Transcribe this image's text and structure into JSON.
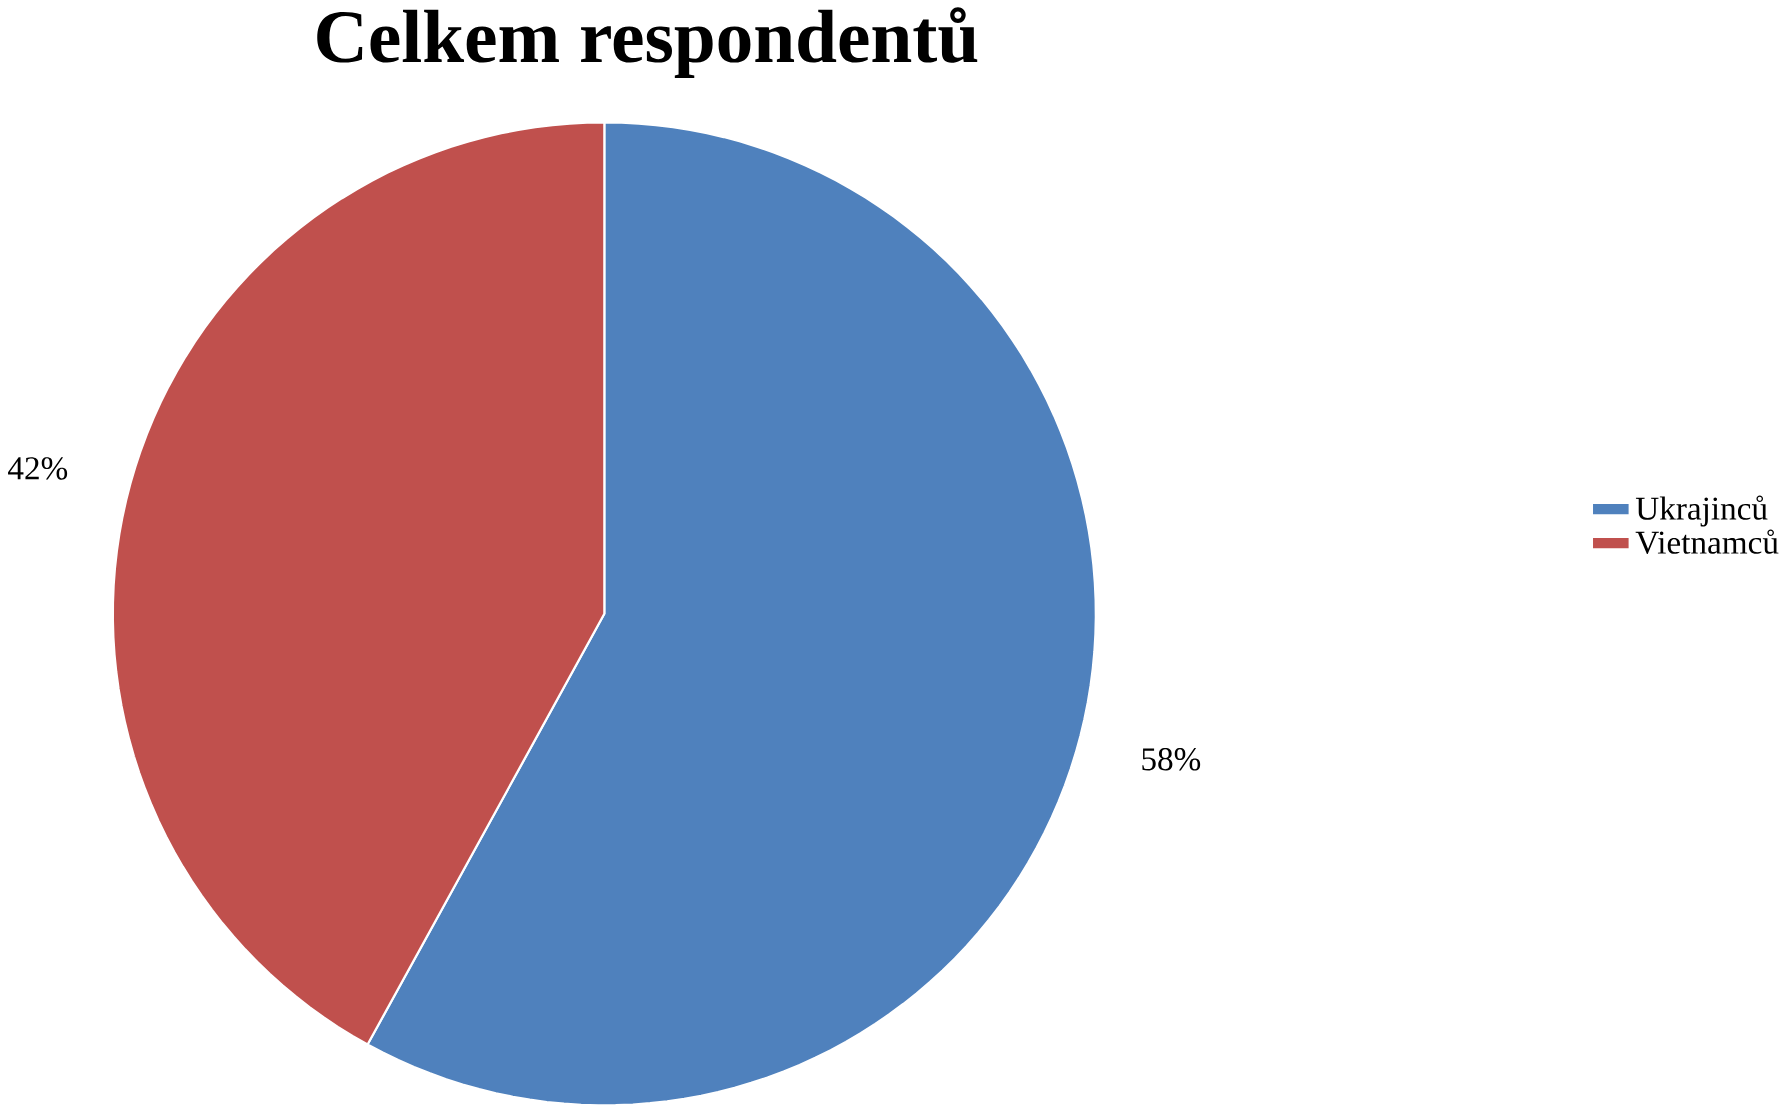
{
  "chart_data": {
    "type": "pie",
    "title": "Celkem respondentů",
    "categories": [
      "Ukrajinců",
      "Vietnamců"
    ],
    "values": [
      58,
      42
    ],
    "colors": [
      "#4f81bd",
      "#c0504d"
    ],
    "value_labels": [
      "58%",
      "42%"
    ],
    "legend": "right"
  }
}
